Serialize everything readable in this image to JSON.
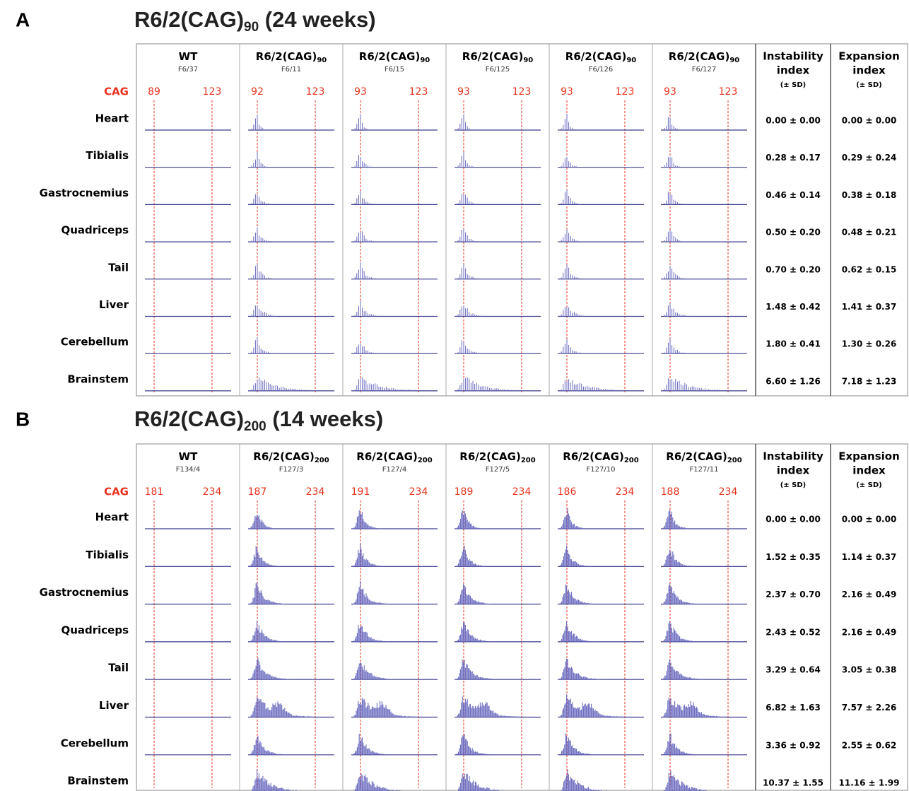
{
  "panels": [
    {
      "label": "A",
      "title": {
        "main": "R6/2(CAG)",
        "sub": "90",
        "rest": " (24 weeks)"
      },
      "cag_label": "CAG",
      "columns": [
        {
          "name": "WT",
          "id": "F6/37",
          "cag": [
            "89",
            "123"
          ]
        },
        {
          "name": "R6/2(CAG)",
          "sub": "90",
          "id": "F6/11",
          "cag": [
            "92",
            "123"
          ]
        },
        {
          "name": "R6/2(CAG)",
          "sub": "90",
          "id": "F6/15",
          "cag": [
            "93",
            "123"
          ]
        },
        {
          "name": "R6/2(CAG)",
          "sub": "90",
          "id": "F6/125",
          "cag": [
            "93",
            "123"
          ]
        },
        {
          "name": "R6/2(CAG)",
          "sub": "90",
          "id": "F6/126",
          "cag": [
            "93",
            "123"
          ]
        },
        {
          "name": "R6/2(CAG)",
          "sub": "90",
          "id": "F6/127",
          "cag": [
            "93",
            "123"
          ]
        }
      ],
      "index_headers": [
        {
          "lines": [
            "Instability",
            "index"
          ],
          "sd": "(± SD)"
        },
        {
          "lines": [
            "Expansion",
            "index"
          ],
          "sd": "(± SD)"
        }
      ],
      "rows": [
        {
          "tissue": "Heart",
          "instability": "0.00 ± 0.00",
          "expansion": "0.00 ± 0.00"
        },
        {
          "tissue": "Tibialis",
          "instability": "0.28 ± 0.17",
          "expansion": "0.29 ± 0.24"
        },
        {
          "tissue": "Gastrocnemius",
          "instability": "0.46 ± 0.14",
          "expansion": "0.38 ± 0.18"
        },
        {
          "tissue": "Quadriceps",
          "instability": "0.50 ± 0.20",
          "expansion": "0.48 ± 0.21"
        },
        {
          "tissue": "Tail",
          "instability": "0.70 ± 0.20",
          "expansion": "0.62 ± 0.15"
        },
        {
          "tissue": "Liver",
          "instability": "1.48 ± 0.42",
          "expansion": "1.41 ± 0.37"
        },
        {
          "tissue": "Cerebellum",
          "instability": "1.80 ± 0.41",
          "expansion": "1.30 ± 0.26"
        },
        {
          "tissue": "Brainstem",
          "instability": "6.60 ± 1.26",
          "expansion": "7.18 ± 1.23"
        }
      ]
    },
    {
      "label": "B",
      "title": {
        "main": "R6/2(CAG)",
        "sub": "200",
        "rest": " (14 weeks)"
      },
      "cag_label": "CAG",
      "columns": [
        {
          "name": "WT",
          "id": "F134/4",
          "cag": [
            "181",
            "234"
          ]
        },
        {
          "name": "R6/2(CAG)",
          "sub": "200",
          "id": "F127/3",
          "cag": [
            "187",
            "234"
          ]
        },
        {
          "name": "R6/2(CAG)",
          "sub": "200",
          "id": "F127/4",
          "cag": [
            "191",
            "234"
          ]
        },
        {
          "name": "R6/2(CAG)",
          "sub": "200",
          "id": "F127/5",
          "cag": [
            "189",
            "234"
          ]
        },
        {
          "name": "R6/2(CAG)",
          "sub": "200",
          "id": "F127/10",
          "cag": [
            "186",
            "234"
          ]
        },
        {
          "name": "R6/2(CAG)",
          "sub": "200",
          "id": "F127/11",
          "cag": [
            "188",
            "234"
          ]
        }
      ],
      "index_headers": [
        {
          "lines": [
            "Instability",
            "index"
          ],
          "sd": "(± SD)"
        },
        {
          "lines": [
            "Expansion",
            "index"
          ],
          "sd": "(± SD)"
        }
      ],
      "rows": [
        {
          "tissue": "Heart",
          "instability": "0.00 ± 0.00",
          "expansion": "0.00 ± 0.00"
        },
        {
          "tissue": "Tibialis",
          "instability": "1.52 ± 0.35",
          "expansion": "1.14 ± 0.37"
        },
        {
          "tissue": "Gastrocnemius",
          "instability": "2.37 ± 0.70",
          "expansion": "2.16 ± 0.49"
        },
        {
          "tissue": "Quadriceps",
          "instability": "2.43 ± 0.52",
          "expansion": "2.16 ± 0.49"
        },
        {
          "tissue": "Tail",
          "instability": "3.29 ± 0.64",
          "expansion": "3.05 ± 0.38"
        },
        {
          "tissue": "Liver",
          "instability": "6.82 ± 1.63",
          "expansion": "7.57 ± 2.26"
        },
        {
          "tissue": "Cerebellum",
          "instability": "3.36 ± 0.92",
          "expansion": "2.55 ± 0.62"
        },
        {
          "tissue": "Brainstem",
          "instability": "10.37 ± 1.55",
          "expansion": "11.16 ± 1.99"
        }
      ]
    }
  ]
}
